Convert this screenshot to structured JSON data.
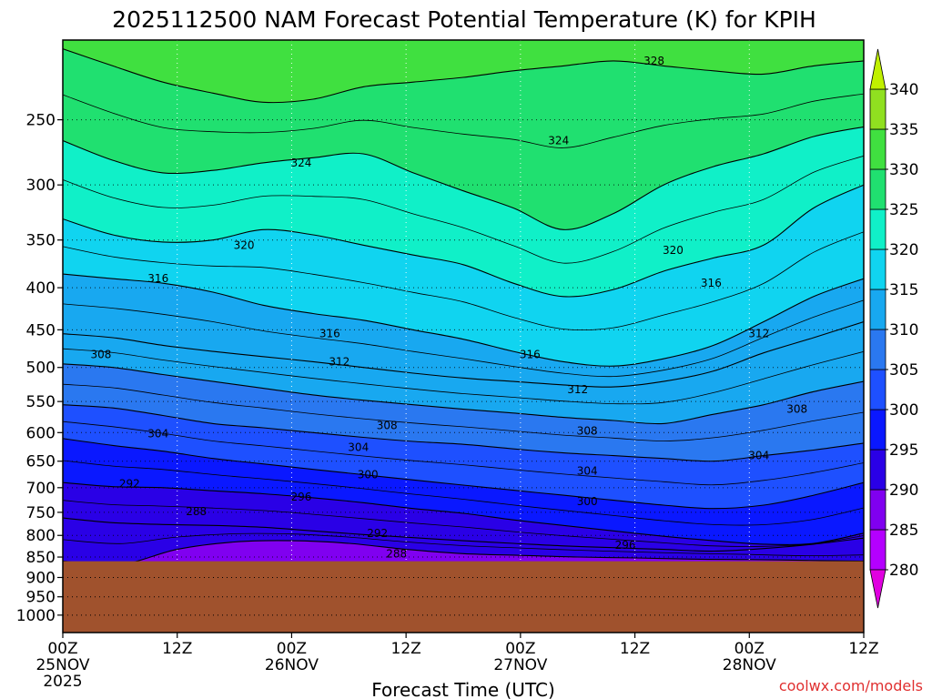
{
  "chart_data": {
    "type": "heatmap",
    "title": "2025112500 NAM Forecast Potential Temperature (K) for KPIH",
    "xlabel": "Forecast Time (UTC)",
    "ylabel": "",
    "credit": "coolwx.com/models",
    "x_range_hours": [
      0,
      84
    ],
    "x_ticks": [
      {
        "hour": 0,
        "line1": "00Z",
        "line2": "25NOV",
        "line3": "2025"
      },
      {
        "hour": 12,
        "line1": "12Z",
        "line2": "",
        "line3": ""
      },
      {
        "hour": 24,
        "line1": "00Z",
        "line2": "26NOV",
        "line3": ""
      },
      {
        "hour": 36,
        "line1": "12Z",
        "line2": "",
        "line3": ""
      },
      {
        "hour": 48,
        "line1": "00Z",
        "line2": "27NOV",
        "line3": ""
      },
      {
        "hour": 60,
        "line1": "12Z",
        "line2": "",
        "line3": ""
      },
      {
        "hour": 72,
        "line1": "00Z",
        "line2": "28NOV",
        "line3": ""
      },
      {
        "hour": 84,
        "line1": "12Z",
        "line2": "",
        "line3": ""
      }
    ],
    "y_scale": "log-pressure (inverted)",
    "y_range_hpa": [
      1050,
      200
    ],
    "y_ticks": [
      250,
      300,
      350,
      400,
      450,
      500,
      550,
      600,
      650,
      700,
      750,
      800,
      850,
      900,
      950,
      1000
    ],
    "surface_pressure_hpa": 860,
    "colorbar": {
      "levels": [
        280,
        285,
        290,
        295,
        300,
        305,
        310,
        315,
        320,
        325,
        330,
        335,
        340
      ],
      "colors": [
        "#e000e0",
        "#b400ff",
        "#8000f0",
        "#2a00e6",
        "#0a18ff",
        "#1e50ff",
        "#2a78f0",
        "#18a8f0",
        "#10d4f0",
        "#10f0c8",
        "#20e070",
        "#40e040",
        "#90e020",
        "#c0f000"
      ]
    },
    "isotherms": [
      {
        "theta": 288,
        "pressure_hpa": [
          860,
          868,
          832,
          815,
          812,
          818,
          832,
          842,
          846,
          850,
          852,
          855,
          856,
          858,
          860
        ]
      },
      {
        "theta": 292,
        "pressure_hpa": [
          762,
          772,
          776,
          778,
          782,
          790,
          798,
          805,
          812,
          818,
          824,
          828,
          832,
          836,
          830,
          820,
          806
        ]
      },
      {
        "theta": 296,
        "pressure_hpa": [
          690,
          698,
          700,
          706,
          712,
          720,
          730,
          742,
          752,
          766,
          778,
          790,
          802,
          812,
          820,
          818,
          795
        ]
      },
      {
        "theta": 300,
        "pressure_hpa": [
          610,
          622,
          632,
          645,
          655,
          665,
          675,
          685,
          695,
          705,
          715,
          725,
          735,
          742,
          735,
          715,
          690
        ]
      },
      {
        "theta": 304,
        "pressure_hpa": [
          555,
          560,
          572,
          585,
          592,
          600,
          608,
          615,
          620,
          628,
          635,
          640,
          645,
          650,
          640,
          630,
          618
        ]
      },
      {
        "theta": 308,
        "pressure_hpa": [
          495,
          500,
          510,
          520,
          530,
          540,
          548,
          555,
          562,
          568,
          575,
          580,
          585,
          570,
          555,
          535,
          520
        ]
      },
      {
        "theta": 312,
        "pressure_hpa": [
          455,
          460,
          470,
          478,
          485,
          492,
          500,
          508,
          515,
          520,
          525,
          528,
          520,
          505,
          480,
          460,
          440
        ]
      },
      {
        "theta": 316,
        "pressure_hpa": [
          385,
          390,
          395,
          405,
          420,
          430,
          438,
          450,
          462,
          478,
          492,
          498,
          488,
          470,
          440,
          410,
          390
        ]
      },
      {
        "theta": 320,
        "pressure_hpa": [
          330,
          345,
          352,
          350,
          340,
          345,
          355,
          365,
          375,
          395,
          410,
          402,
          382,
          368,
          355,
          320,
          300
        ]
      },
      {
        "theta": 324,
        "pressure_hpa": [
          265,
          280,
          290,
          288,
          282,
          278,
          275,
          290,
          305,
          320,
          340,
          325,
          300,
          285,
          275,
          262,
          255
        ]
      },
      {
        "theta": 328,
        "pressure_hpa": [
          205,
          215,
          225,
          232,
          238,
          236,
          228,
          225,
          222,
          218,
          215,
          212,
          215,
          218,
          220,
          215,
          212
        ]
      }
    ],
    "contour_labels": [
      {
        "text": "328",
        "hour": 62,
        "p": 212
      },
      {
        "text": "324",
        "hour": 25,
        "p": 282
      },
      {
        "text": "324",
        "hour": 52,
        "p": 265
      },
      {
        "text": "320",
        "hour": 19,
        "p": 355
      },
      {
        "text": "320",
        "hour": 64,
        "p": 360
      },
      {
        "text": "316",
        "hour": 10,
        "p": 390
      },
      {
        "text": "316",
        "hour": 68,
        "p": 395
      },
      {
        "text": "316",
        "hour": 28,
        "p": 455
      },
      {
        "text": "316",
        "hour": 49,
        "p": 482
      },
      {
        "text": "312",
        "hour": 29,
        "p": 492
      },
      {
        "text": "312",
        "hour": 54,
        "p": 532
      },
      {
        "text": "312",
        "hour": 73,
        "p": 455
      },
      {
        "text": "308",
        "hour": 4,
        "p": 482
      },
      {
        "text": "308",
        "hour": 34,
        "p": 588
      },
      {
        "text": "308",
        "hour": 55,
        "p": 597
      },
      {
        "text": "308",
        "hour": 77,
        "p": 562
      },
      {
        "text": "304",
        "hour": 10,
        "p": 602
      },
      {
        "text": "304",
        "hour": 31,
        "p": 625
      },
      {
        "text": "304",
        "hour": 55,
        "p": 668
      },
      {
        "text": "304",
        "hour": 73,
        "p": 640
      },
      {
        "text": "300",
        "hour": 32,
        "p": 675
      },
      {
        "text": "300",
        "hour": 55,
        "p": 728
      },
      {
        "text": "296",
        "hour": 25,
        "p": 718
      },
      {
        "text": "296",
        "hour": 59,
        "p": 822
      },
      {
        "text": "292",
        "hour": 7,
        "p": 692
      },
      {
        "text": "292",
        "hour": 33,
        "p": 795
      },
      {
        "text": "288",
        "hour": 14,
        "p": 748
      },
      {
        "text": "288",
        "hour": 35,
        "p": 842
      }
    ]
  }
}
